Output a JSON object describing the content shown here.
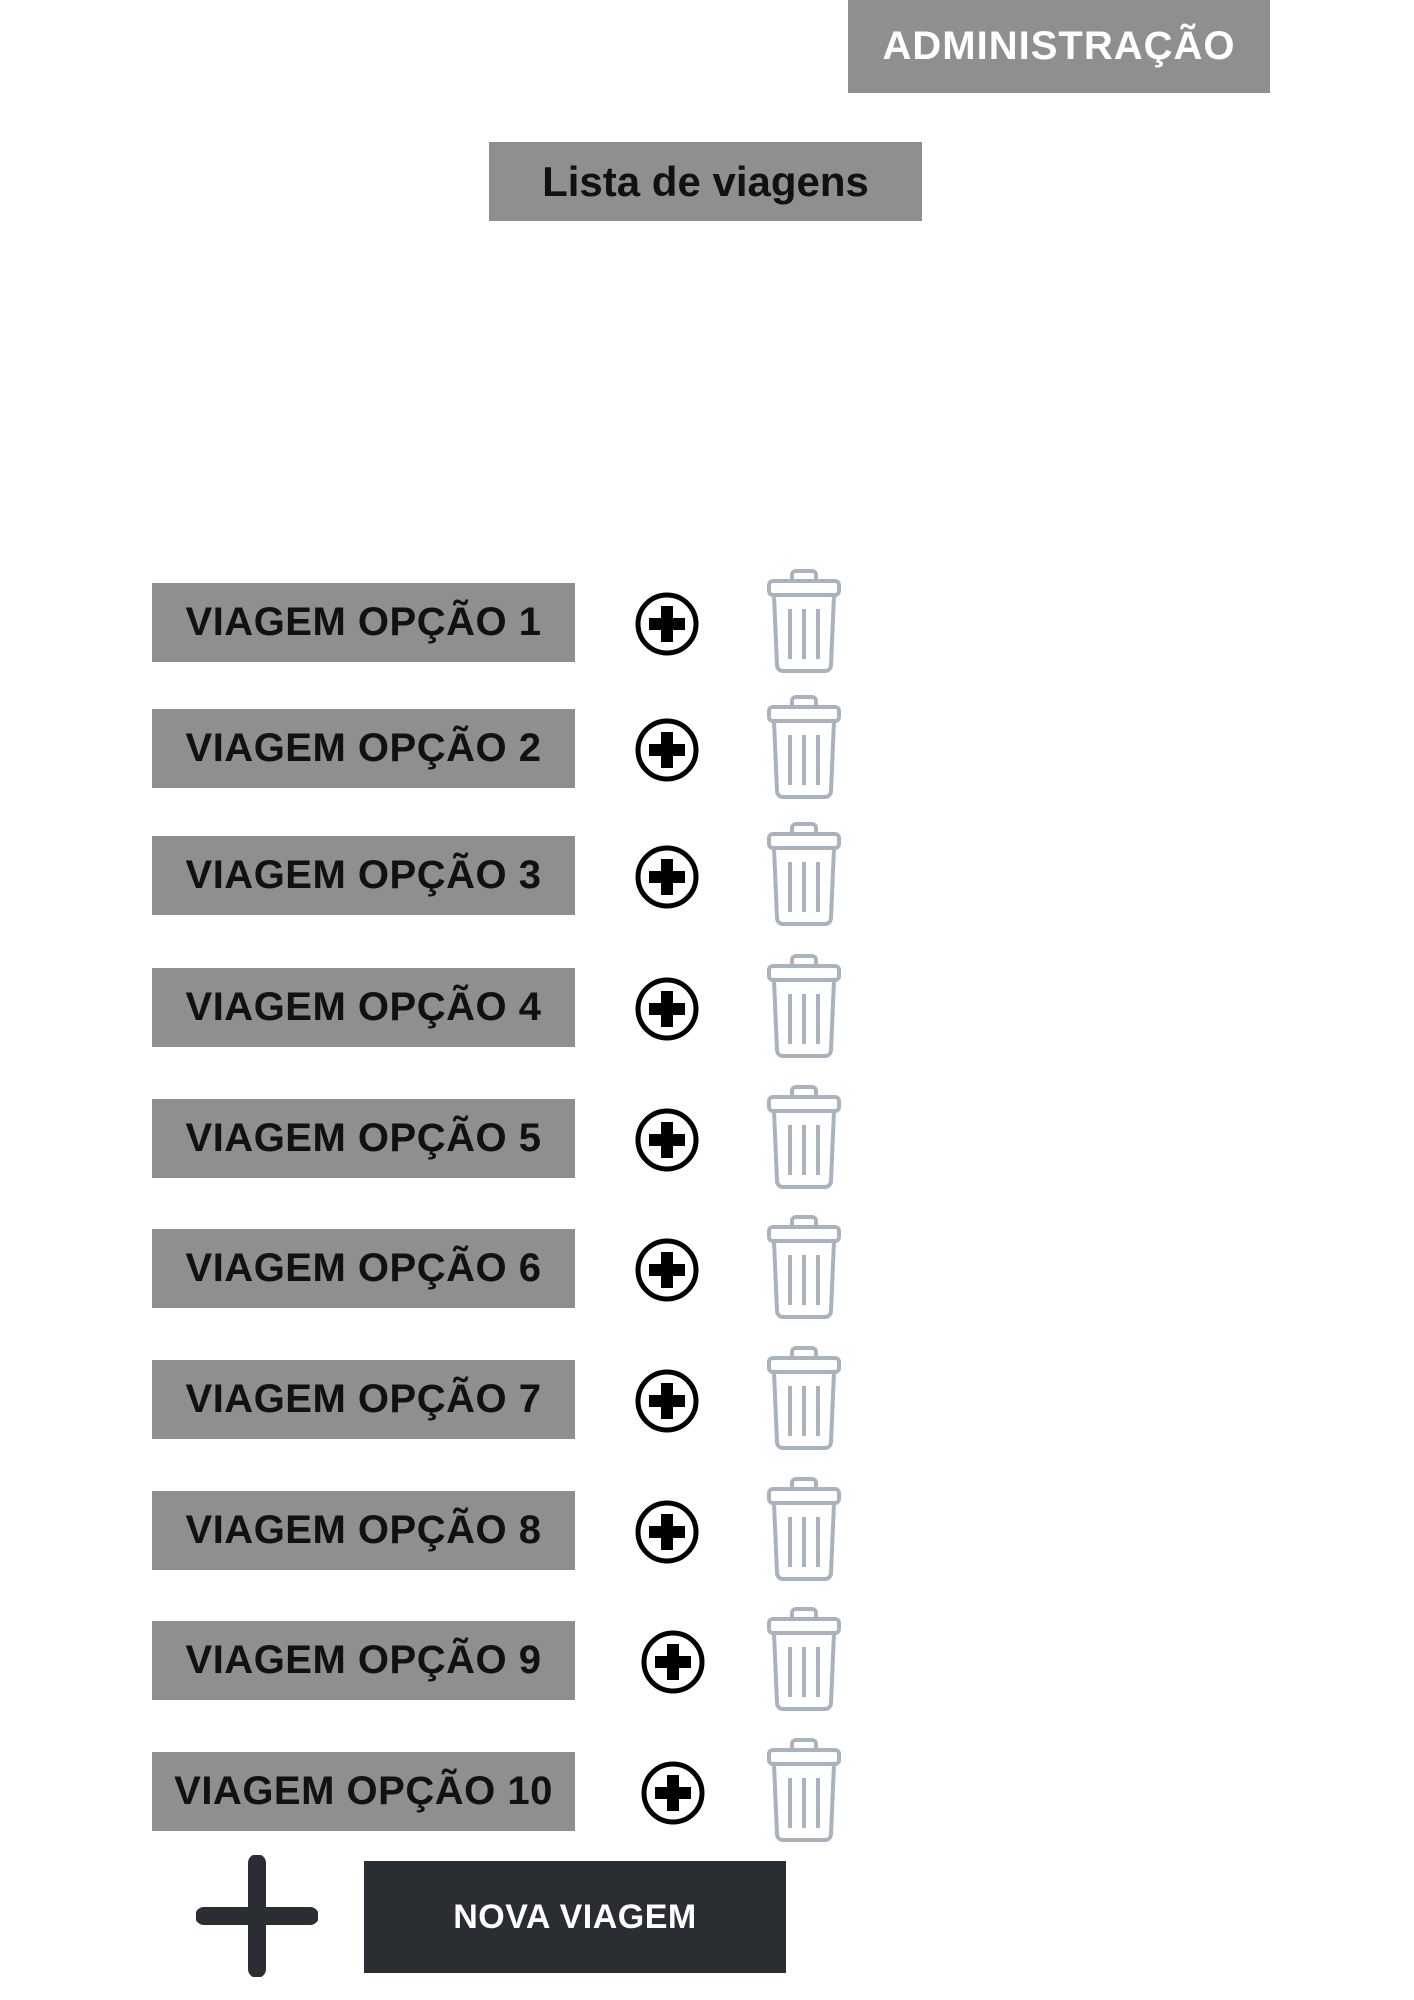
{
  "header": {
    "admin_label": "ADMINISTRAÇÃO",
    "page_title": "Lista de viagens"
  },
  "trips": [
    {
      "label": "VIAGEM OPÇÃO 1"
    },
    {
      "label": "VIAGEM OPÇÃO 2"
    },
    {
      "label": "VIAGEM OPÇÃO 3"
    },
    {
      "label": "VIAGEM OPÇÃO 4"
    },
    {
      "label": "VIAGEM OPÇÃO 5"
    },
    {
      "label": "VIAGEM OPÇÃO 6"
    },
    {
      "label": "VIAGEM OPÇÃO 7"
    },
    {
      "label": "VIAGEM OPÇÃO 8"
    },
    {
      "label": "VIAGEM OPÇÃO 9"
    },
    {
      "label": "VIAGEM OPÇÃO 10"
    }
  ],
  "icons": {
    "add": "plus-circle-icon",
    "delete": "trash-icon",
    "new": "plus-icon"
  },
  "footer": {
    "new_trip_label": "NOVA VIAGEM"
  },
  "colors": {
    "label_bg": "#8f8f8f",
    "button_dark": "#2a2e33",
    "trash_gray": "#a9b3bd"
  }
}
